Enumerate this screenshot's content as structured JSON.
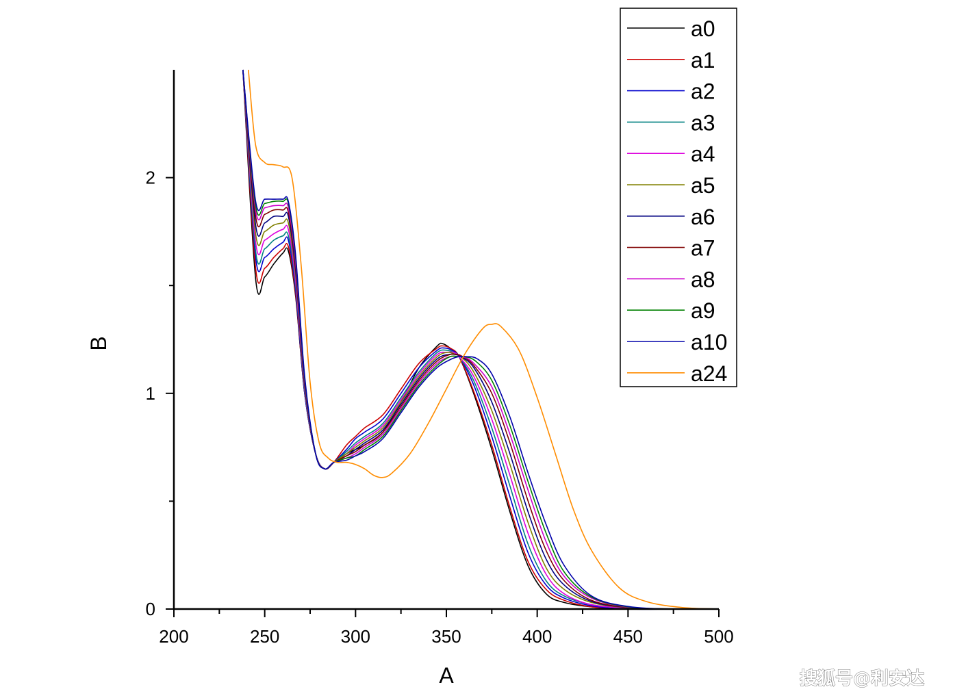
{
  "chart_data": {
    "type": "line",
    "xlabel": "A",
    "ylabel": "B",
    "xlim": [
      200,
      500
    ],
    "ylim": [
      0,
      2.5
    ],
    "x_ticks": [
      200,
      250,
      300,
      350,
      400,
      450,
      500
    ],
    "x_tick_labels": [
      "200",
      "250",
      "300",
      "350",
      "400",
      "450",
      "500"
    ],
    "y_ticks": [
      0,
      1,
      2
    ],
    "y_tick_labels": [
      "0",
      "1",
      "2"
    ],
    "grid": false,
    "legend_position": "top-right",
    "series": [
      {
        "name": "a0",
        "color": "#000000",
        "x": [
          238,
          245,
          250,
          255,
          260,
          263,
          267,
          272,
          278,
          283,
          288,
          295,
          300,
          305,
          315,
          325,
          335,
          345,
          348,
          352,
          357,
          365,
          375,
          385,
          395,
          405,
          415,
          430,
          450,
          475,
          500
        ],
        "y": [
          2.5,
          1.53,
          1.54,
          1.6,
          1.65,
          1.66,
          1.45,
          1.0,
          0.72,
          0.65,
          0.68,
          0.72,
          0.74,
          0.76,
          0.82,
          0.96,
          1.12,
          1.22,
          1.23,
          1.21,
          1.17,
          1.0,
          0.74,
          0.45,
          0.2,
          0.07,
          0.03,
          0.01,
          0.0,
          0.0,
          0.0
        ]
      },
      {
        "name": "a1",
        "color": "#cc0000",
        "x": [
          238,
          245,
          250,
          255,
          260,
          263,
          267,
          272,
          278,
          283,
          288,
          295,
          300,
          305,
          315,
          325,
          335,
          345,
          348,
          352,
          357,
          365,
          375,
          385,
          395,
          405,
          415,
          430,
          450,
          475,
          500
        ],
        "y": [
          2.5,
          1.58,
          1.58,
          1.63,
          1.67,
          1.68,
          1.46,
          1.0,
          0.72,
          0.65,
          0.68,
          0.76,
          0.8,
          0.84,
          0.9,
          1.02,
          1.14,
          1.21,
          1.22,
          1.21,
          1.17,
          1.01,
          0.76,
          0.47,
          0.22,
          0.09,
          0.04,
          0.01,
          0.0,
          0.0,
          0.0
        ]
      },
      {
        "name": "a2",
        "color": "#0000cc",
        "x": [
          238,
          245,
          250,
          255,
          260,
          263,
          267,
          272,
          278,
          283,
          288,
          295,
          300,
          305,
          315,
          325,
          335,
          345,
          349,
          353,
          357,
          365,
          375,
          385,
          395,
          405,
          415,
          430,
          450,
          475,
          500
        ],
        "y": [
          2.5,
          1.63,
          1.63,
          1.67,
          1.7,
          1.71,
          1.48,
          1.0,
          0.72,
          0.65,
          0.68,
          0.74,
          0.79,
          0.82,
          0.88,
          1.0,
          1.12,
          1.2,
          1.21,
          1.2,
          1.17,
          1.04,
          0.8,
          0.52,
          0.26,
          0.11,
          0.05,
          0.015,
          0.0,
          0.0,
          0.0
        ]
      },
      {
        "name": "a3",
        "color": "#008080",
        "x": [
          238,
          245,
          250,
          255,
          260,
          263,
          267,
          272,
          278,
          283,
          288,
          295,
          300,
          305,
          315,
          325,
          335,
          345,
          350,
          354,
          357,
          365,
          375,
          385,
          395,
          405,
          415,
          430,
          450,
          475,
          500
        ],
        "y": [
          2.5,
          1.66,
          1.67,
          1.71,
          1.73,
          1.73,
          1.5,
          1.01,
          0.72,
          0.65,
          0.68,
          0.73,
          0.77,
          0.8,
          0.86,
          0.98,
          1.1,
          1.19,
          1.2,
          1.19,
          1.17,
          1.06,
          0.84,
          0.57,
          0.3,
          0.13,
          0.06,
          0.02,
          0.005,
          0.0,
          0.0
        ]
      },
      {
        "name": "a4",
        "color": "#dd00dd",
        "x": [
          238,
          245,
          250,
          255,
          260,
          263,
          267,
          272,
          278,
          283,
          288,
          295,
          300,
          305,
          315,
          325,
          335,
          345,
          350,
          354,
          357,
          365,
          375,
          385,
          395,
          405,
          415,
          430,
          450,
          475,
          500
        ],
        "y": [
          2.5,
          1.7,
          1.71,
          1.74,
          1.76,
          1.76,
          1.52,
          1.02,
          0.72,
          0.65,
          0.68,
          0.72,
          0.76,
          0.79,
          0.85,
          0.97,
          1.09,
          1.18,
          1.19,
          1.19,
          1.17,
          1.08,
          0.88,
          0.62,
          0.35,
          0.16,
          0.07,
          0.02,
          0.005,
          0.0,
          0.0
        ]
      },
      {
        "name": "a5",
        "color": "#808000",
        "x": [
          238,
          245,
          250,
          255,
          260,
          263,
          267,
          272,
          278,
          283,
          288,
          295,
          300,
          305,
          315,
          325,
          335,
          345,
          351,
          355,
          358,
          365,
          375,
          385,
          395,
          405,
          415,
          430,
          450,
          475,
          500
        ],
        "y": [
          2.5,
          1.74,
          1.75,
          1.78,
          1.79,
          1.79,
          1.55,
          1.03,
          0.72,
          0.65,
          0.68,
          0.72,
          0.75,
          0.78,
          0.84,
          0.96,
          1.08,
          1.17,
          1.19,
          1.18,
          1.17,
          1.1,
          0.92,
          0.67,
          0.4,
          0.19,
          0.09,
          0.03,
          0.006,
          0.0,
          0.0
        ]
      },
      {
        "name": "a6",
        "color": "#000080",
        "x": [
          238,
          245,
          250,
          255,
          260,
          263,
          267,
          272,
          278,
          283,
          288,
          295,
          300,
          305,
          315,
          325,
          335,
          345,
          351,
          355,
          358,
          365,
          375,
          385,
          395,
          405,
          415,
          430,
          450,
          475,
          500
        ],
        "y": [
          2.5,
          1.78,
          1.79,
          1.82,
          1.82,
          1.82,
          1.57,
          1.04,
          0.72,
          0.65,
          0.68,
          0.71,
          0.74,
          0.77,
          0.83,
          0.95,
          1.07,
          1.16,
          1.18,
          1.18,
          1.17,
          1.12,
          0.96,
          0.72,
          0.45,
          0.23,
          0.11,
          0.035,
          0.007,
          0.0,
          0.0
        ]
      },
      {
        "name": "a7",
        "color": "#800000",
        "x": [
          238,
          245,
          250,
          255,
          260,
          263,
          267,
          272,
          278,
          283,
          288,
          295,
          300,
          305,
          315,
          325,
          335,
          345,
          352,
          356,
          359,
          365,
          375,
          385,
          395,
          405,
          415,
          430,
          450,
          475,
          500
        ],
        "y": [
          2.5,
          1.82,
          1.83,
          1.85,
          1.85,
          1.84,
          1.59,
          1.05,
          0.72,
          0.65,
          0.68,
          0.71,
          0.73,
          0.76,
          0.82,
          0.94,
          1.06,
          1.15,
          1.18,
          1.18,
          1.17,
          1.13,
          1.0,
          0.77,
          0.5,
          0.27,
          0.13,
          0.04,
          0.008,
          0.0,
          0.0
        ]
      },
      {
        "name": "a8",
        "color": "#cc00cc",
        "x": [
          238,
          245,
          250,
          255,
          260,
          263,
          267,
          272,
          278,
          283,
          288,
          295,
          300,
          305,
          315,
          325,
          335,
          345,
          352,
          356,
          359,
          365,
          375,
          385,
          395,
          405,
          415,
          430,
          450,
          475,
          500
        ],
        "y": [
          2.5,
          1.85,
          1.86,
          1.87,
          1.87,
          1.86,
          1.61,
          1.06,
          0.72,
          0.65,
          0.68,
          0.7,
          0.72,
          0.75,
          0.81,
          0.93,
          1.05,
          1.14,
          1.17,
          1.17,
          1.17,
          1.14,
          1.03,
          0.81,
          0.55,
          0.31,
          0.15,
          0.05,
          0.009,
          0.0,
          0.0
        ]
      },
      {
        "name": "a9",
        "color": "#008000",
        "x": [
          238,
          245,
          250,
          255,
          260,
          263,
          267,
          272,
          278,
          283,
          288,
          295,
          300,
          305,
          315,
          325,
          335,
          345,
          352,
          357,
          360,
          366,
          375,
          385,
          395,
          405,
          415,
          430,
          450,
          475,
          500
        ],
        "y": [
          2.5,
          1.87,
          1.88,
          1.89,
          1.89,
          1.88,
          1.63,
          1.07,
          0.72,
          0.65,
          0.68,
          0.7,
          0.71,
          0.74,
          0.8,
          0.92,
          1.04,
          1.13,
          1.17,
          1.17,
          1.17,
          1.15,
          1.06,
          0.85,
          0.59,
          0.35,
          0.17,
          0.055,
          0.01,
          0.0,
          0.0
        ]
      },
      {
        "name": "a10",
        "color": "#0000aa",
        "x": [
          238,
          245,
          250,
          255,
          260,
          263,
          267,
          272,
          278,
          283,
          288,
          295,
          300,
          305,
          315,
          325,
          335,
          345,
          353,
          357,
          361,
          367,
          375,
          385,
          395,
          405,
          415,
          430,
          450,
          475,
          500
        ],
        "y": [
          2.5,
          1.89,
          1.9,
          1.9,
          1.9,
          1.89,
          1.64,
          1.08,
          0.72,
          0.65,
          0.68,
          0.69,
          0.71,
          0.73,
          0.79,
          0.91,
          1.03,
          1.12,
          1.16,
          1.17,
          1.17,
          1.16,
          1.09,
          0.89,
          0.63,
          0.39,
          0.2,
          0.06,
          0.012,
          0.0,
          0.0
        ]
      },
      {
        "name": "a24",
        "color": "#ff8c00",
        "x": [
          241,
          245,
          250,
          255,
          260,
          265,
          270,
          275,
          280,
          285,
          290,
          295,
          300,
          305,
          310,
          315,
          320,
          330,
          340,
          350,
          360,
          370,
          375,
          380,
          390,
          400,
          410,
          420,
          430,
          445,
          460,
          480,
          500
        ],
        "y": [
          2.5,
          2.15,
          2.07,
          2.06,
          2.05,
          2.0,
          1.6,
          1.05,
          0.77,
          0.7,
          0.68,
          0.68,
          0.67,
          0.65,
          0.62,
          0.61,
          0.63,
          0.72,
          0.86,
          1.02,
          1.18,
          1.3,
          1.32,
          1.31,
          1.2,
          0.98,
          0.72,
          0.46,
          0.27,
          0.1,
          0.035,
          0.007,
          0.0
        ]
      }
    ]
  },
  "watermark": "搜狐号@利安达"
}
